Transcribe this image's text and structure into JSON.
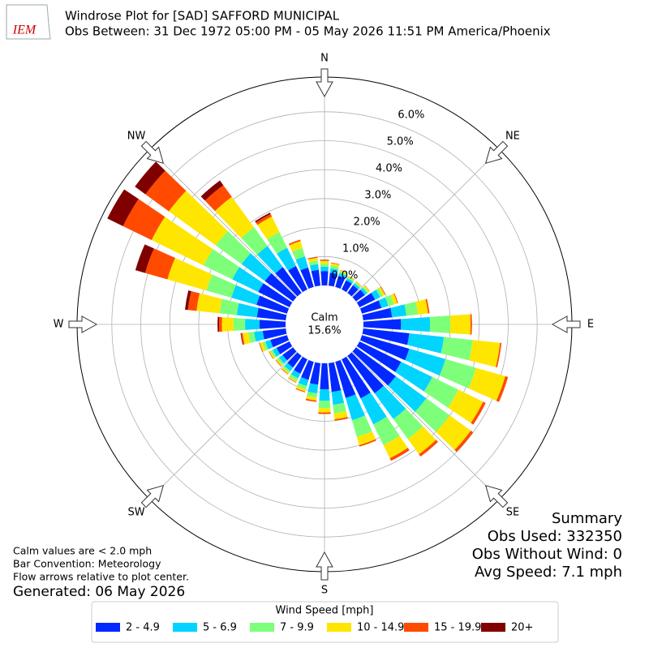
{
  "chart_data": {
    "type": "windrose",
    "logo": "IEM",
    "title": "Windrose Plot for [SAD] SAFFORD MUNICIPAL",
    "subtitle": "Obs Between: 31 Dec 1972 05:00 PM - 05 May 2026 11:51 PM America/Phoenix",
    "calm_label": "Calm",
    "calm_value": 15.6,
    "calm_value_label": "15.6%",
    "x": [
      0,
      10,
      20,
      30,
      40,
      50,
      60,
      70,
      80,
      90,
      100,
      110,
      120,
      130,
      140,
      150,
      160,
      170,
      180,
      190,
      200,
      210,
      220,
      230,
      240,
      250,
      260,
      270,
      280,
      290,
      300,
      310,
      320,
      330,
      340,
      350
    ],
    "xlim": [
      0,
      360
    ],
    "xticks": [
      {
        "value": 0,
        "label": "N"
      },
      {
        "value": 45,
        "label": "NE"
      },
      {
        "value": 90,
        "label": "E"
      },
      {
        "value": 135,
        "label": "SE"
      },
      {
        "value": 180,
        "label": "S"
      },
      {
        "value": 225,
        "label": "SW"
      },
      {
        "value": 270,
        "label": "W"
      },
      {
        "value": 315,
        "label": "NW"
      }
    ],
    "ylim": [
      0,
      7.2
    ],
    "yticks": [
      {
        "value": 0,
        "label": "0.0%"
      },
      {
        "value": 1,
        "label": "1.0%"
      },
      {
        "value": 2,
        "label": "2.0%"
      },
      {
        "value": 3,
        "label": "3.0%"
      },
      {
        "value": 4,
        "label": "4.0%"
      },
      {
        "value": 5,
        "label": "5.0%"
      },
      {
        "value": 6,
        "label": "6.0%"
      }
    ],
    "grid": true,
    "legend_title": "Wind Speed [mph]",
    "series": [
      {
        "name": "2 - 4.9",
        "color": "#0028ff",
        "values": [
          0.5,
          0.45,
          0.4,
          0.35,
          0.33,
          0.38,
          0.6,
          0.7,
          1.0,
          1.3,
          1.6,
          1.7,
          1.6,
          1.7,
          1.6,
          1.5,
          1.3,
          1.0,
          0.9,
          0.75,
          0.65,
          0.55,
          0.5,
          0.45,
          0.5,
          0.6,
          0.8,
          0.9,
          1.0,
          1.1,
          1.2,
          1.2,
          1.1,
          0.9,
          0.7,
          0.55
        ]
      },
      {
        "name": "5 - 6.9",
        "color": "#00d4ff",
        "values": [
          0.15,
          0.15,
          0.1,
          0.08,
          0.08,
          0.1,
          0.2,
          0.25,
          0.5,
          1.0,
          1.2,
          1.3,
          1.2,
          1.3,
          1.1,
          1.0,
          0.8,
          0.45,
          0.4,
          0.3,
          0.22,
          0.18,
          0.15,
          0.15,
          0.15,
          0.18,
          0.3,
          0.5,
          0.7,
          0.9,
          1.0,
          1.0,
          0.9,
          0.7,
          0.4,
          0.2
        ]
      },
      {
        "name": "7 - 9.9",
        "color": "#7dff7a",
        "values": [
          0.1,
          0.1,
          0.06,
          0.05,
          0.05,
          0.06,
          0.1,
          0.2,
          0.4,
          0.7,
          1.0,
          1.1,
          1.0,
          1.0,
          0.85,
          0.8,
          0.6,
          0.3,
          0.25,
          0.15,
          0.12,
          0.1,
          0.08,
          0.08,
          0.08,
          0.1,
          0.2,
          0.4,
          0.6,
          0.9,
          1.1,
          1.1,
          0.8,
          0.6,
          0.3,
          0.12
        ]
      },
      {
        "name": "10 - 14.9",
        "color": "#ffe600",
        "values": [
          0.1,
          0.08,
          0.04,
          0.03,
          0.03,
          0.05,
          0.08,
          0.12,
          0.35,
          0.7,
          0.95,
          1.05,
          0.95,
          0.9,
          0.65,
          0.5,
          0.3,
          0.2,
          0.15,
          0.1,
          0.08,
          0.05,
          0.05,
          0.05,
          0.05,
          0.1,
          0.2,
          0.4,
          0.8,
          1.4,
          2.0,
          2.0,
          1.3,
          0.6,
          0.25,
          0.1
        ]
      },
      {
        "name": "15 - 19.9",
        "color": "#ff4a00",
        "values": [
          0.03,
          0.02,
          0.01,
          0.01,
          0.01,
          0.01,
          0.02,
          0.03,
          0.05,
          0.05,
          0.05,
          0.1,
          0.1,
          0.1,
          0.1,
          0.1,
          0.05,
          0.05,
          0.05,
          0.05,
          0.03,
          0.02,
          0.02,
          0.02,
          0.02,
          0.02,
          0.05,
          0.1,
          0.3,
          0.8,
          1.1,
          1.0,
          0.5,
          0.1,
          0.05,
          0.03
        ]
      },
      {
        "name": "20+",
        "color": "#800000",
        "values": [
          0.01,
          0,
          0,
          0,
          0,
          0,
          0,
          0,
          0,
          0,
          0,
          0,
          0,
          0,
          0,
          0,
          0,
          0,
          0,
          0,
          0,
          0,
          0,
          0,
          0,
          0,
          0.02,
          0.05,
          0.1,
          0.35,
          0.6,
          0.45,
          0.2,
          0.05,
          0,
          0
        ]
      }
    ],
    "notes": [
      "Calm values are < 2.0 mph",
      "Bar Convention: Meteorology",
      "Flow arrows relative to plot center."
    ],
    "generated": "Generated: 06 May 2026",
    "summary": [
      "Summary",
      "Obs Used: 332350",
      "Obs Without Wind: 0",
      "Avg Speed: 7.1 mph"
    ]
  }
}
